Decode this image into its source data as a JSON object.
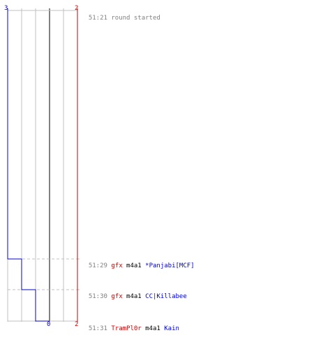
{
  "colors": {
    "team_a": "#0000cc",
    "team_b": "#cc0000",
    "text": "#000000",
    "muted": "#808080"
  },
  "scores": {
    "team_a_start": "3",
    "team_b_start": "2",
    "team_a_end": "0",
    "team_b_end": "2"
  },
  "events": [
    {
      "time": "51:21",
      "message": "round started"
    },
    {
      "time": "51:29",
      "killer": "gfx",
      "killer_color": "#cc0000",
      "weapon": "m4a1",
      "victim": "*Panjabi[MCF]",
      "victim_color": "#0000cc"
    },
    {
      "time": "51:30",
      "killer": "gfx",
      "killer_color": "#cc0000",
      "weapon": "m4a1",
      "victim": "CC|Killabee",
      "victim_color": "#0000cc"
    },
    {
      "time": "51:31",
      "killer": "TramPl0r",
      "killer_color": "#cc0000",
      "weapon": "m4a1",
      "victim": "Kain",
      "victim_color": "#0000cc"
    }
  ]
}
